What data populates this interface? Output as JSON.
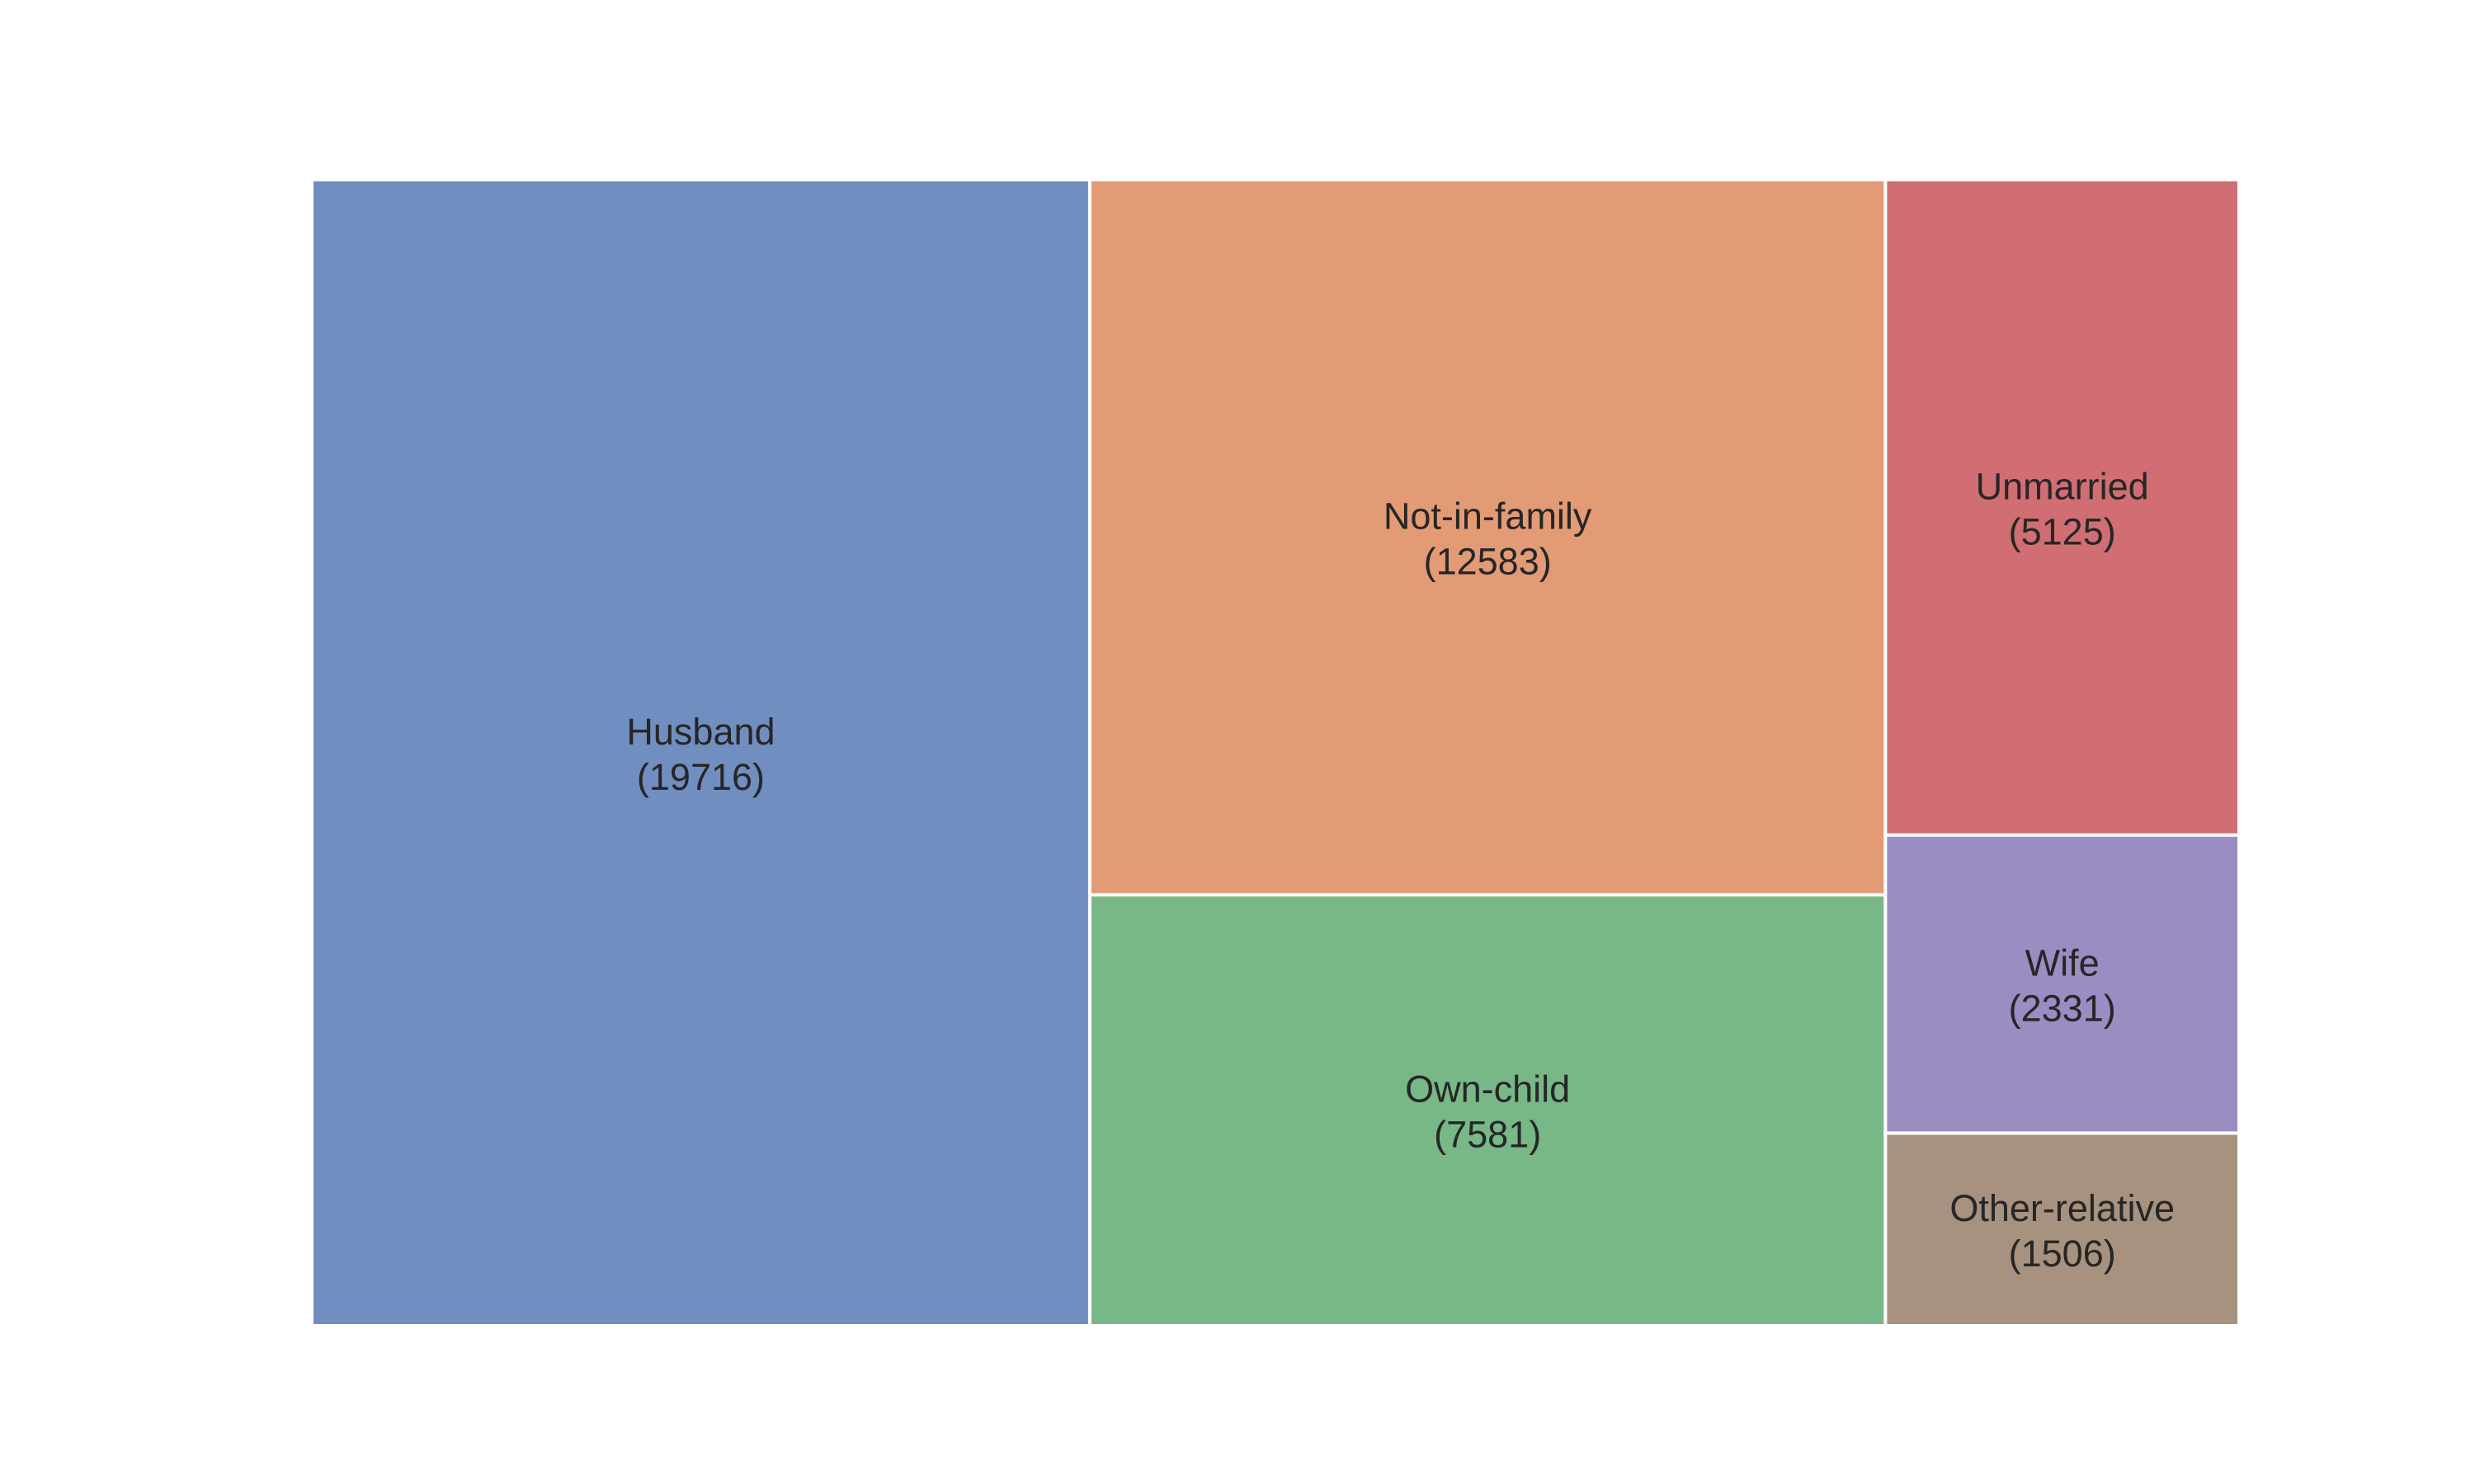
{
  "chart_data": {
    "type": "treemap",
    "title": "",
    "xlabel": "",
    "ylabel": "",
    "grid": false,
    "legend": "none",
    "categories": [
      "Husband",
      "Not-in-family",
      "Own-child",
      "Unmarried",
      "Wife",
      "Other-relative"
    ],
    "values": [
      19716,
      12583,
      7581,
      5125,
      2331,
      1506
    ],
    "labels": [
      "(19716)",
      "(12583)",
      "(7581)",
      "(5125)",
      "(2331)",
      "(1506)"
    ],
    "colors": [
      "#718EC0",
      "#E39B76",
      "#78B887",
      "#D16E73",
      "#9B8DC2",
      "#A7917F"
    ]
  }
}
